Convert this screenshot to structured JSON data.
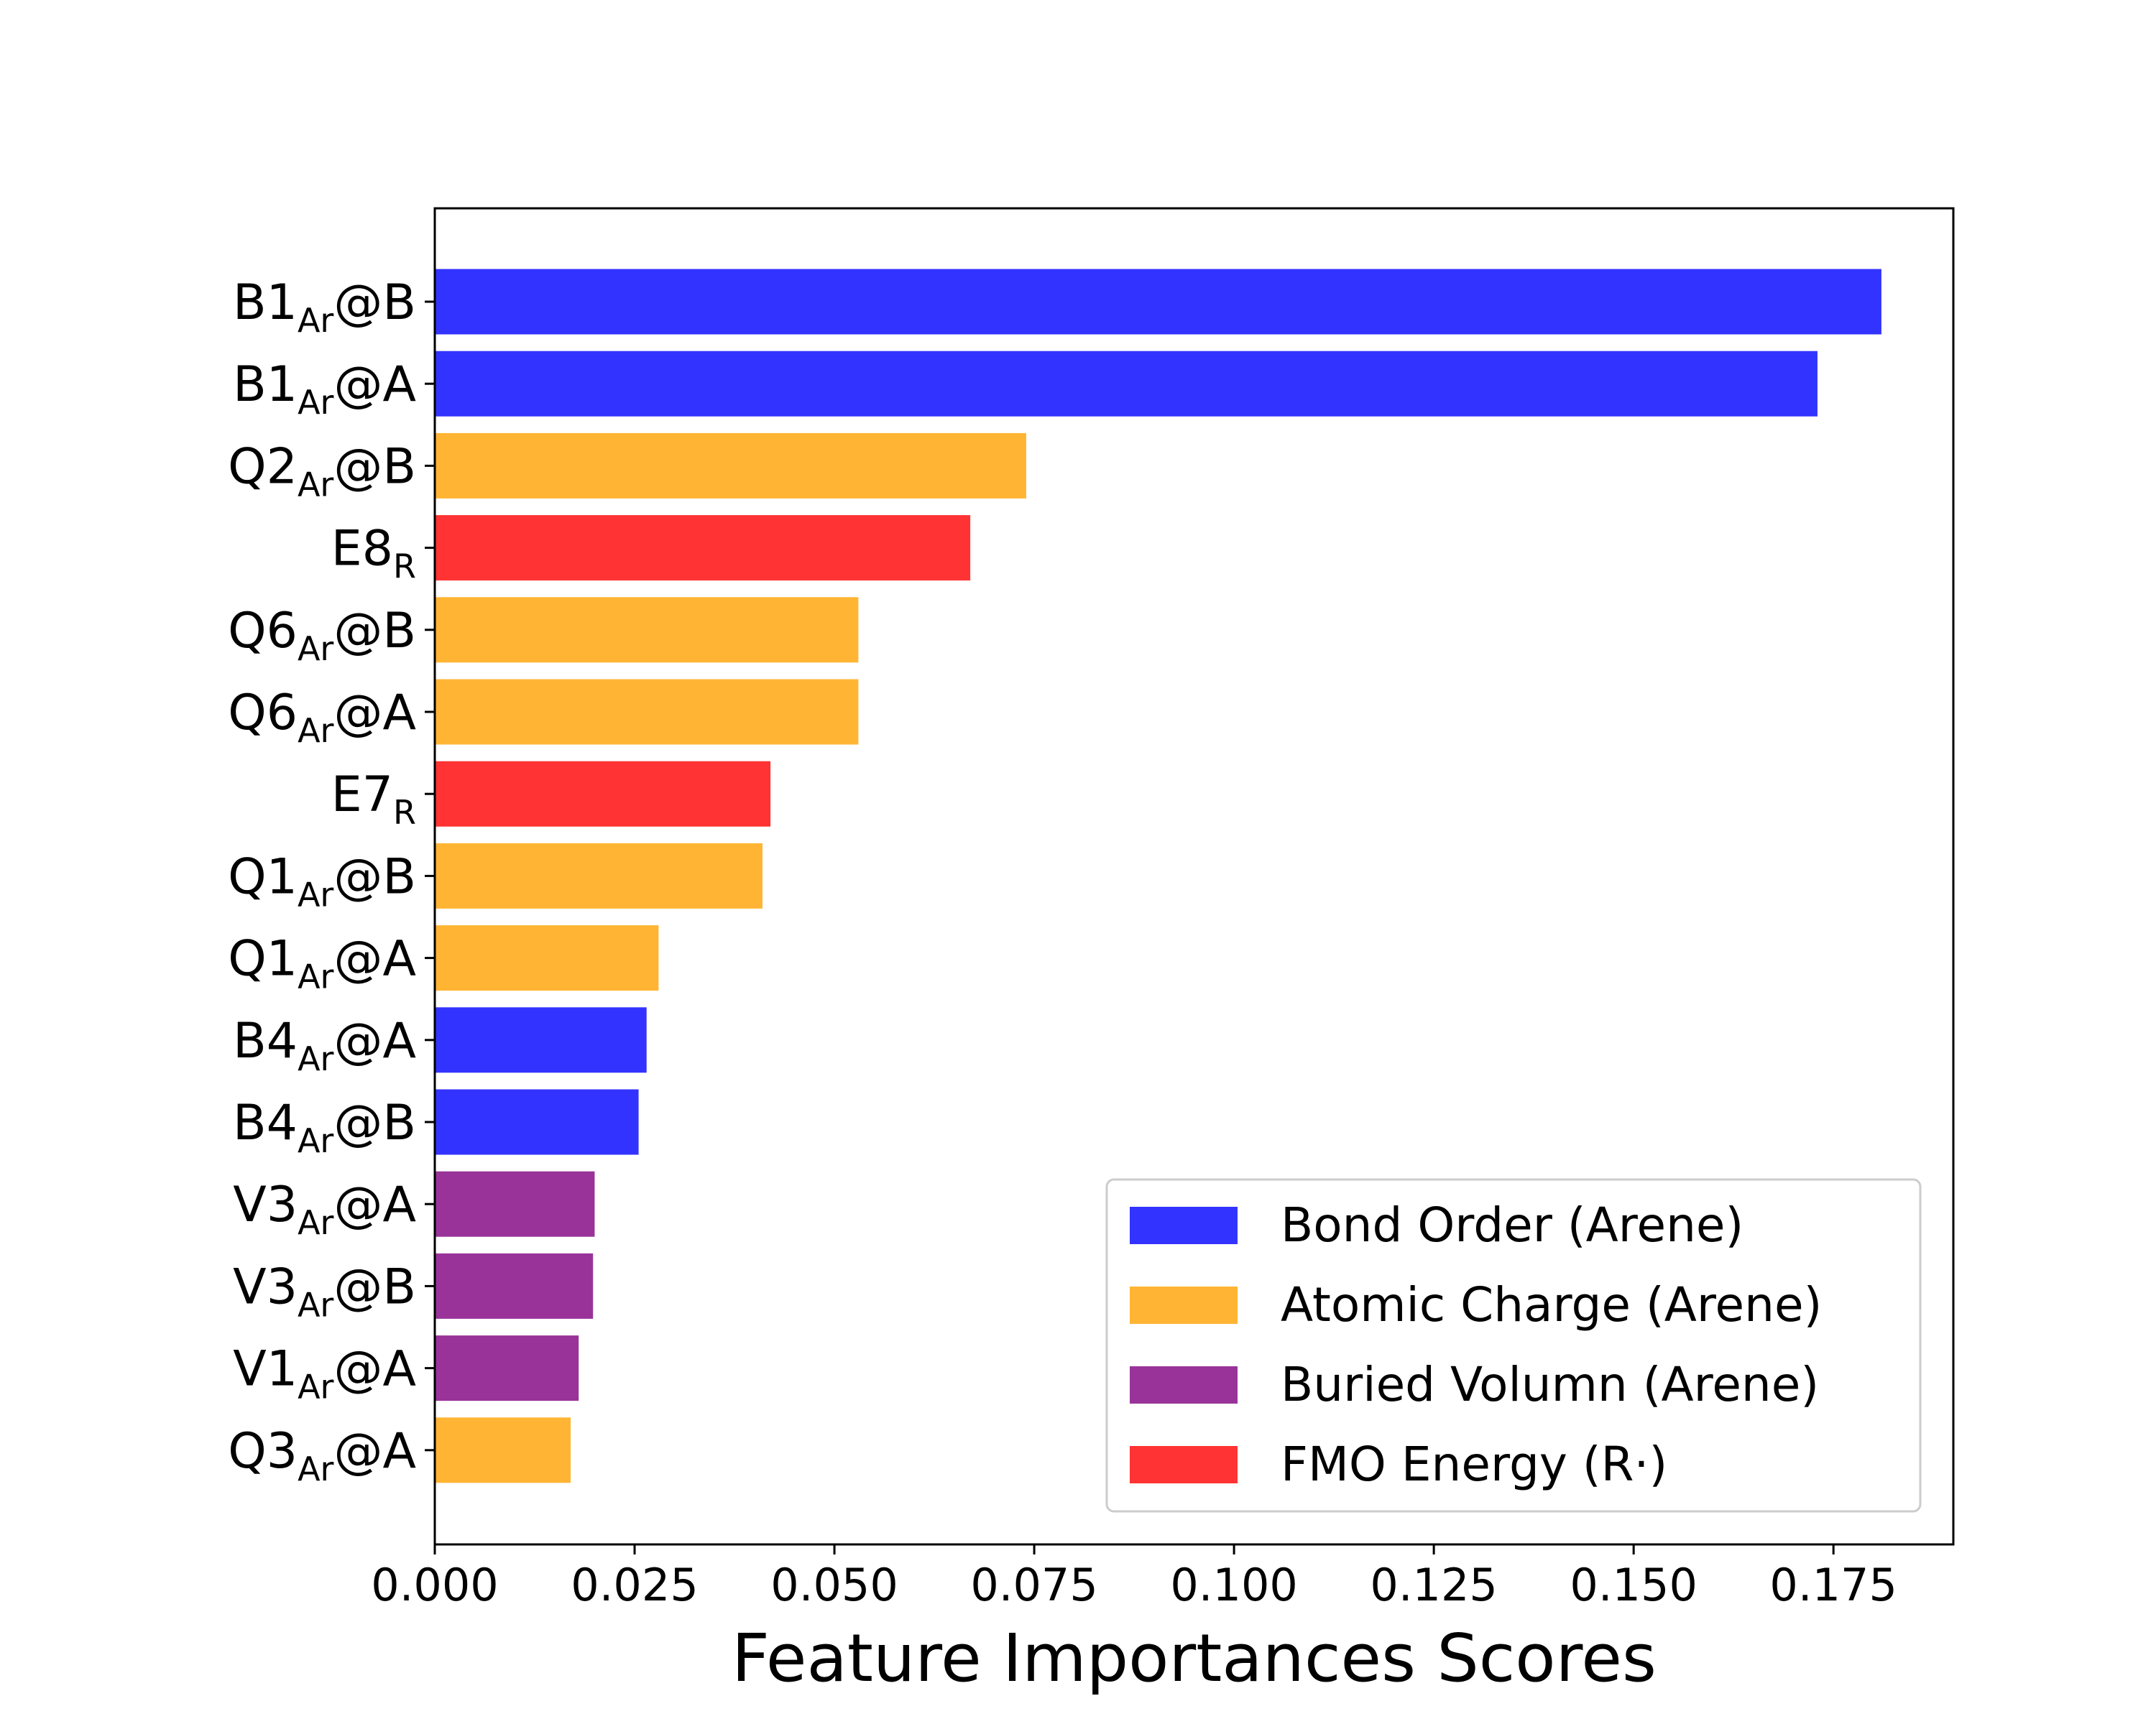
{
  "chart_data": {
    "type": "bar",
    "orientation": "horizontal",
    "xlabel": "Feature Importances Scores",
    "ylabel": "",
    "xlim": [
      0,
      0.19
    ],
    "xticks": [
      "0.000",
      "0.025",
      "0.050",
      "0.075",
      "0.100",
      "0.125",
      "0.150",
      "0.175"
    ],
    "grid": false,
    "legend_position": "lower-right",
    "groups": [
      {
        "key": "bond",
        "name": "Bond Order (Arene)",
        "color": "#3333ff"
      },
      {
        "key": "charge",
        "name": "Atomic Charge (Arene)",
        "color": "#ffb533"
      },
      {
        "key": "volume",
        "name": "Buried Volumn (Arene)",
        "color": "#993399"
      },
      {
        "key": "fmo",
        "name": "FMO Energy (R·)",
        "color": "#ff3333"
      }
    ],
    "bars": [
      {
        "label": "B1",
        "sub": "Ar",
        "suffix": "@B",
        "value": 0.181,
        "group": "bond"
      },
      {
        "label": "B1",
        "sub": "Ar",
        "suffix": "@A",
        "value": 0.173,
        "group": "bond"
      },
      {
        "label": "Q2",
        "sub": "Ar",
        "suffix": "@B",
        "value": 0.074,
        "group": "charge"
      },
      {
        "label": "E8",
        "sub": "R",
        "suffix": "",
        "value": 0.067,
        "group": "fmo"
      },
      {
        "label": "Q6",
        "sub": "Ar",
        "suffix": "@B",
        "value": 0.053,
        "group": "charge"
      },
      {
        "label": "Q6",
        "sub": "Ar",
        "suffix": "@A",
        "value": 0.053,
        "group": "charge"
      },
      {
        "label": "E7",
        "sub": "R",
        "suffix": "",
        "value": 0.042,
        "group": "fmo"
      },
      {
        "label": "Q1",
        "sub": "Ar",
        "suffix": "@B",
        "value": 0.041,
        "group": "charge"
      },
      {
        "label": "Q1",
        "sub": "Ar",
        "suffix": "@A",
        "value": 0.028,
        "group": "charge"
      },
      {
        "label": "B4",
        "sub": "Ar",
        "suffix": "@A",
        "value": 0.0265,
        "group": "bond"
      },
      {
        "label": "B4",
        "sub": "Ar",
        "suffix": "@B",
        "value": 0.0255,
        "group": "bond"
      },
      {
        "label": "V3",
        "sub": "Ar",
        "suffix": "@A",
        "value": 0.02,
        "group": "volume"
      },
      {
        "label": "V3",
        "sub": "Ar",
        "suffix": "@B",
        "value": 0.0198,
        "group": "volume"
      },
      {
        "label": "V1",
        "sub": "Ar",
        "suffix": "@A",
        "value": 0.018,
        "group": "volume"
      },
      {
        "label": "Q3",
        "sub": "Ar",
        "suffix": "@A",
        "value": 0.017,
        "group": "charge"
      }
    ]
  }
}
